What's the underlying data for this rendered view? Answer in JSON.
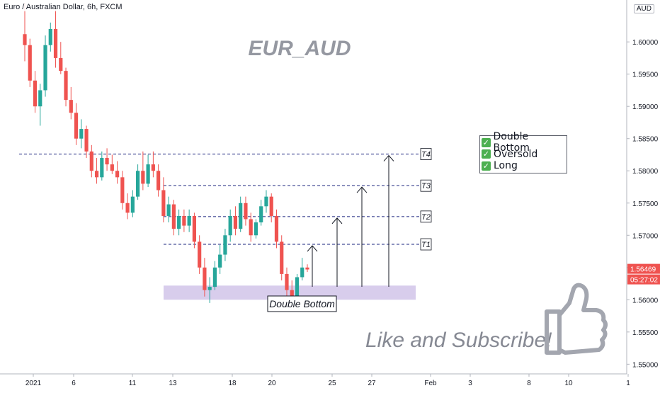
{
  "header": {
    "symbol_text": "Euro / Australian Dollar, 6h, FXCM",
    "currency_label": "AUD"
  },
  "chart_data": {
    "type": "candlestick",
    "title": "EUR_AUD",
    "ylim": [
      1.5485,
      1.6065
    ],
    "y_ticks": [
      "1.55000",
      "1.55500",
      "1.56000",
      "1.56500",
      "1.57000",
      "1.57500",
      "1.58000",
      "1.58500",
      "1.59000",
      "1.59500",
      "1.60000"
    ],
    "x_ticks": [
      "2021",
      "6",
      "11",
      "13",
      "18",
      "20",
      "25",
      "27",
      "Feb",
      "3",
      "8",
      "10",
      "1"
    ],
    "last_price": "1.56469",
    "countdown": "05:27:02",
    "bull_color": "#26a69a",
    "bear_color": "#ef5350",
    "candles": [
      [
        1.6012,
        1.606,
        1.597,
        1.5995
      ],
      [
        1.5995,
        1.6005,
        1.593,
        1.594
      ],
      [
        1.594,
        1.5955,
        1.589,
        1.59
      ],
      [
        1.59,
        1.5935,
        1.587,
        1.5925
      ],
      [
        1.5925,
        1.601,
        1.5915,
        1.5995
      ],
      [
        1.5995,
        1.603,
        1.5985,
        1.602
      ],
      [
        1.602,
        1.605,
        1.596,
        1.5975
      ],
      [
        1.5975,
        1.6,
        1.595,
        1.5955
      ],
      [
        1.5955,
        1.596,
        1.59,
        1.591
      ],
      [
        1.591,
        1.593,
        1.588,
        1.589
      ],
      [
        1.589,
        1.5905,
        1.584,
        1.585
      ],
      [
        1.585,
        1.588,
        1.5835,
        1.5865
      ],
      [
        1.5865,
        1.587,
        1.582,
        1.583
      ],
      [
        1.583,
        1.584,
        1.579,
        1.58
      ],
      [
        1.58,
        1.582,
        1.578,
        1.579
      ],
      [
        1.579,
        1.583,
        1.5785,
        1.582
      ],
      [
        1.582,
        1.5835,
        1.58,
        1.581
      ],
      [
        1.581,
        1.5825,
        1.5795,
        1.58
      ],
      [
        1.58,
        1.5815,
        1.578,
        1.579
      ],
      [
        1.579,
        1.58,
        1.574,
        1.575
      ],
      [
        1.575,
        1.5765,
        1.5725,
        1.5735
      ],
      [
        1.5735,
        1.577,
        1.5728,
        1.576
      ],
      [
        1.576,
        1.581,
        1.5755,
        1.58
      ],
      [
        1.58,
        1.583,
        1.577,
        1.578
      ],
      [
        1.578,
        1.5825,
        1.5775,
        1.581
      ],
      [
        1.581,
        1.583,
        1.579,
        1.58
      ],
      [
        1.58,
        1.581,
        1.576,
        1.577
      ],
      [
        1.577,
        1.579,
        1.572,
        1.573
      ],
      [
        1.573,
        1.576,
        1.572,
        1.5748
      ],
      [
        1.5748,
        1.5755,
        1.57,
        1.571
      ],
      [
        1.571,
        1.574,
        1.57,
        1.573
      ],
      [
        1.573,
        1.574,
        1.5705,
        1.5715
      ],
      [
        1.5715,
        1.574,
        1.5705,
        1.573
      ],
      [
        1.573,
        1.5735,
        1.568,
        1.569
      ],
      [
        1.569,
        1.57,
        1.564,
        1.565
      ],
      [
        1.565,
        1.5665,
        1.5605,
        1.5615
      ],
      [
        1.5615,
        1.5635,
        1.5595,
        1.562
      ],
      [
        1.562,
        1.566,
        1.5615,
        1.565
      ],
      [
        1.565,
        1.5685,
        1.564,
        1.567
      ],
      [
        1.567,
        1.571,
        1.566,
        1.57
      ],
      [
        1.57,
        1.574,
        1.569,
        1.573
      ],
      [
        1.573,
        1.5745,
        1.57,
        1.571
      ],
      [
        1.571,
        1.576,
        1.5705,
        1.575
      ],
      [
        1.575,
        1.576,
        1.5715,
        1.5725
      ],
      [
        1.5725,
        1.5735,
        1.569,
        1.57
      ],
      [
        1.57,
        1.5725,
        1.5695,
        1.572
      ],
      [
        1.572,
        1.5755,
        1.5715,
        1.5745
      ],
      [
        1.5745,
        1.577,
        1.5735,
        1.576
      ],
      [
        1.576,
        1.5765,
        1.572,
        1.573
      ],
      [
        1.573,
        1.574,
        1.568,
        1.569
      ],
      [
        1.569,
        1.57,
        1.563,
        1.564
      ],
      [
        1.564,
        1.565,
        1.56,
        1.5615
      ],
      [
        1.5615,
        1.563,
        1.56,
        1.5605
      ],
      [
        1.5605,
        1.564,
        1.56,
        1.5635
      ],
      [
        1.5635,
        1.5665,
        1.563,
        1.565
      ],
      [
        1.565,
        1.5655,
        1.5643,
        1.5647
      ]
    ],
    "levels": [
      {
        "label": "T1",
        "value": 1.5686
      },
      {
        "label": "T2",
        "value": 1.5729
      },
      {
        "label": "T3",
        "value": 1.5777
      },
      {
        "label": "T4",
        "value": 1.5826
      }
    ],
    "support_zone": [
      1.56,
      1.5622
    ],
    "zone_label": "Double Bottom",
    "legend_items": [
      "Double Bottom",
      "Oversold",
      "Long"
    ],
    "promo_text": "Like and Subscribe!",
    "thumb_icon": "thumbs-up-icon",
    "check_icon": "check-icon"
  }
}
